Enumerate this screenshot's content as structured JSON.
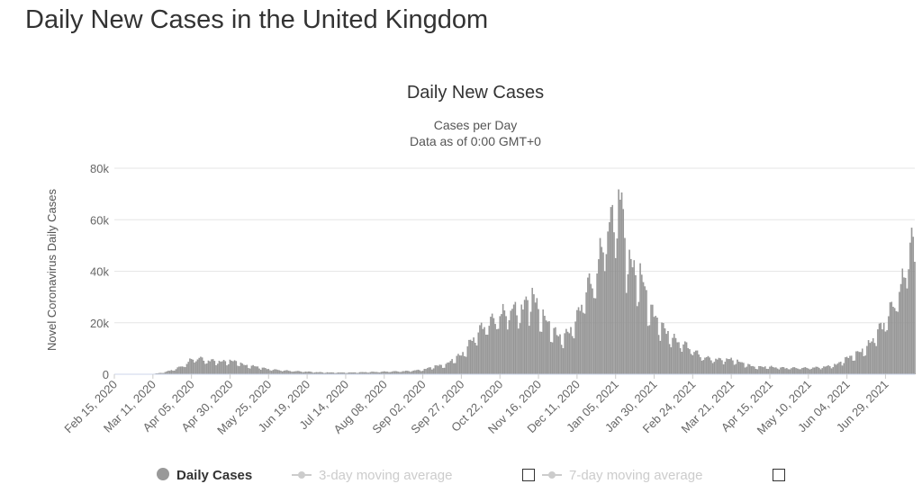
{
  "page": {
    "title": "Daily New Cases in the United Kingdom"
  },
  "colors": {
    "bar": "#999999",
    "bar_edge": "#7a7a7a",
    "grid": "#e6e6e6",
    "axis_text": "#666666",
    "legend_active": "#333333",
    "legend_inactive": "#cccccc"
  },
  "chart_data": {
    "type": "bar",
    "title": "Daily New Cases",
    "subtitle_lines": [
      "Cases per Day",
      "Data as of 0:00 GMT+0"
    ],
    "ylabel": "Novel Coronavirus Daily Cases",
    "xlabel": "",
    "ylim": [
      0,
      80000
    ],
    "yticks": [
      0,
      20000,
      40000,
      60000,
      80000
    ],
    "ytick_labels": [
      "0",
      "20k",
      "40k",
      "60k",
      "80k"
    ],
    "grid": true,
    "x_start": "2020-02-15",
    "x_end": "2021-07-18",
    "x_tick_labels": [
      "Feb 15, 2020",
      "Mar 11, 2020",
      "Apr 05, 2020",
      "Apr 30, 2020",
      "May 25, 2020",
      "Jun 19, 2020",
      "Jul 14, 2020",
      "Aug 08, 2020",
      "Sep 02, 2020",
      "Sep 27, 2020",
      "Oct 22, 2020",
      "Nov 16, 2020",
      "Dec 11, 2020",
      "Jan 05, 2021",
      "Jan 30, 2021",
      "Feb 24, 2021",
      "Mar 21, 2021",
      "Apr 15, 2021",
      "May 10, 2021",
      "Jun 04, 2021",
      "Jun 29, 2021"
    ],
    "series": [
      {
        "name": "Daily Cases",
        "values": [
          [
            "2020-02-15",
            0
          ],
          [
            "2020-03-01",
            20
          ],
          [
            "2020-03-11",
            80
          ],
          [
            "2020-03-18",
            600
          ],
          [
            "2020-03-25",
            1800
          ],
          [
            "2020-04-01",
            3500
          ],
          [
            "2020-04-05",
            5500
          ],
          [
            "2020-04-10",
            6000
          ],
          [
            "2020-04-15",
            5000
          ],
          [
            "2020-04-20",
            5000
          ],
          [
            "2020-04-25",
            4600
          ],
          [
            "2020-04-30",
            5000
          ],
          [
            "2020-05-05",
            4500
          ],
          [
            "2020-05-10",
            3200
          ],
          [
            "2020-05-15",
            3000
          ],
          [
            "2020-05-20",
            2500
          ],
          [
            "2020-05-25",
            1800
          ],
          [
            "2020-06-01",
            1500
          ],
          [
            "2020-06-08",
            1200
          ],
          [
            "2020-06-15",
            1000
          ],
          [
            "2020-06-19",
            900
          ],
          [
            "2020-06-26",
            700
          ],
          [
            "2020-07-05",
            600
          ],
          [
            "2020-07-14",
            550
          ],
          [
            "2020-07-25",
            700
          ],
          [
            "2020-08-01",
            800
          ],
          [
            "2020-08-08",
            900
          ],
          [
            "2020-08-15",
            1000
          ],
          [
            "2020-08-22",
            1100
          ],
          [
            "2020-09-02",
            1600
          ],
          [
            "2020-09-10",
            3000
          ],
          [
            "2020-09-17",
            3500
          ],
          [
            "2020-09-24",
            6500
          ],
          [
            "2020-09-27",
            7000
          ],
          [
            "2020-10-03",
            12000
          ],
          [
            "2020-10-08",
            16000
          ],
          [
            "2020-10-14",
            19000
          ],
          [
            "2020-10-20",
            21000
          ],
          [
            "2020-10-22",
            22000
          ],
          [
            "2020-10-29",
            24000
          ],
          [
            "2020-11-05",
            24000
          ],
          [
            "2020-11-12",
            30000
          ],
          [
            "2020-11-16",
            24000
          ],
          [
            "2020-11-22",
            19000
          ],
          [
            "2020-11-29",
            14000
          ],
          [
            "2020-12-05",
            15000
          ],
          [
            "2020-12-11",
            21000
          ],
          [
            "2020-12-17",
            32000
          ],
          [
            "2020-12-23",
            36000
          ],
          [
            "2020-12-29",
            52000
          ],
          [
            "2021-01-05",
            60000
          ],
          [
            "2021-01-08",
            67000
          ],
          [
            "2021-01-12",
            47000
          ],
          [
            "2021-01-17",
            38000
          ],
          [
            "2021-01-22",
            36000
          ],
          [
            "2021-01-27",
            25000
          ],
          [
            "2021-01-30",
            22000
          ],
          [
            "2021-02-05",
            17000
          ],
          [
            "2021-02-12",
            13000
          ],
          [
            "2021-02-19",
            11000
          ],
          [
            "2021-02-24",
            9000
          ],
          [
            "2021-03-02",
            6500
          ],
          [
            "2021-03-10",
            5500
          ],
          [
            "2021-03-21",
            5500
          ],
          [
            "2021-03-28",
            4200
          ],
          [
            "2021-04-05",
            2700
          ],
          [
            "2021-04-15",
            2700
          ],
          [
            "2021-04-25",
            2300
          ],
          [
            "2021-05-10",
            2300
          ],
          [
            "2021-05-20",
            2700
          ],
          [
            "2021-05-28",
            3500
          ],
          [
            "2021-06-04",
            6000
          ],
          [
            "2021-06-10",
            7500
          ],
          [
            "2021-06-17",
            10000
          ],
          [
            "2021-06-24",
            16000
          ],
          [
            "2021-06-29",
            20000
          ],
          [
            "2021-07-04",
            26000
          ],
          [
            "2021-07-09",
            32000
          ],
          [
            "2021-07-13",
            42000
          ],
          [
            "2021-07-16",
            53000
          ],
          [
            "2021-07-18",
            40000
          ]
        ]
      }
    ],
    "legend": [
      {
        "label": "Daily Cases",
        "active": true
      },
      {
        "label": "3-day moving average",
        "active": false
      },
      {
        "label": "7-day moving average",
        "active": false
      }
    ]
  }
}
